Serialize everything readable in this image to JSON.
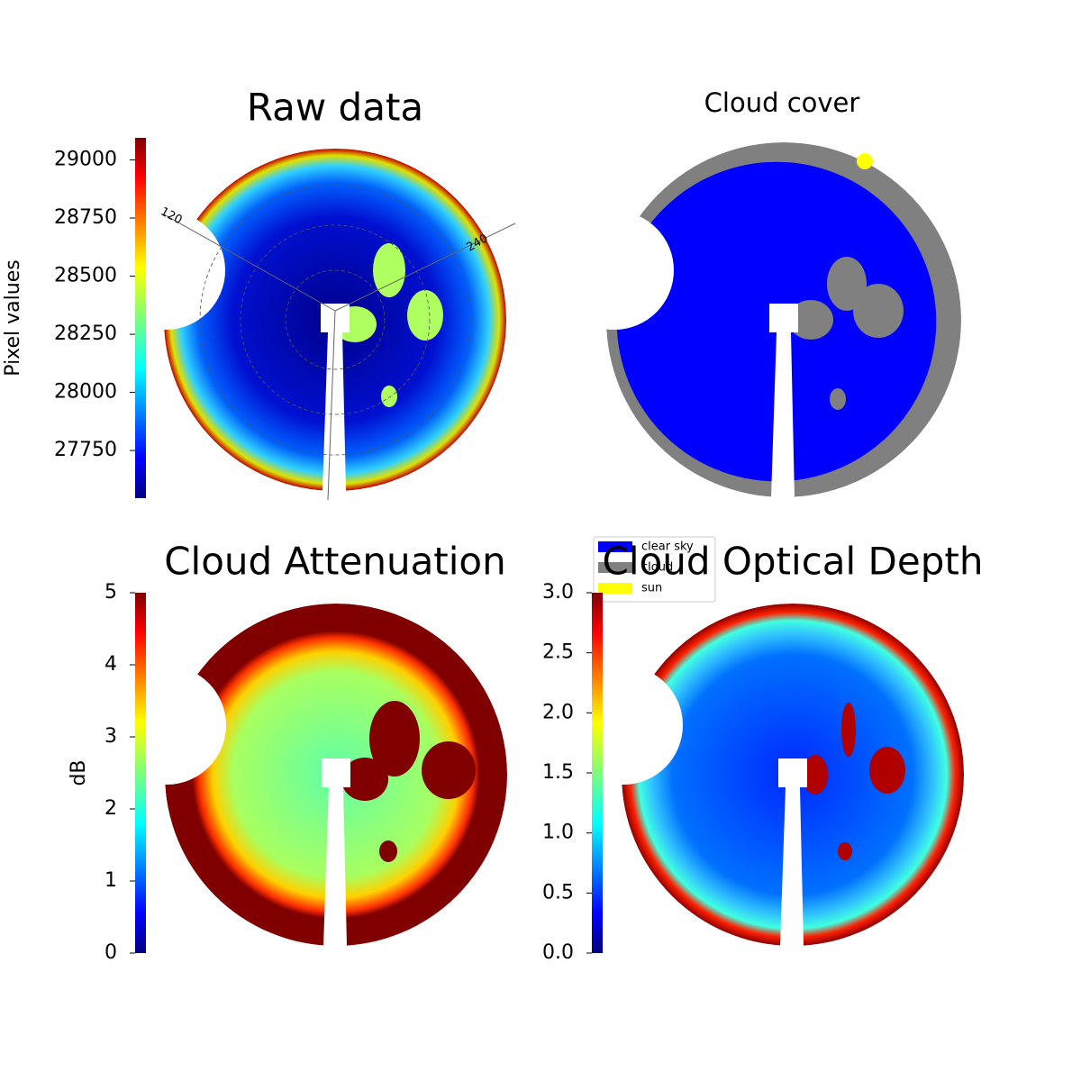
{
  "chart_data": [
    {
      "type": "image",
      "title": "Raw data",
      "colormap": "jet",
      "ylabel": "Pixel values",
      "ylim": [
        27545,
        29095
      ],
      "yticks": [
        27750,
        28000,
        28250,
        28500,
        28750,
        29000
      ],
      "polar_labels": [
        "120",
        "240"
      ]
    },
    {
      "type": "image",
      "title": "Cloud cover",
      "legend": "lower left",
      "series": [
        {
          "name": "clear sky",
          "color": "#0000ff"
        },
        {
          "name": "cloud",
          "color": "#808080"
        },
        {
          "name": "sun",
          "color": "#ffff00"
        }
      ]
    },
    {
      "type": "image",
      "title": "Cloud Attenuation",
      "colormap": "jet",
      "ylabel": "dB",
      "ylim": [
        0,
        5
      ],
      "yticks": [
        0,
        1,
        2,
        3,
        4,
        5
      ]
    },
    {
      "type": "image",
      "title": "Cloud Optical Depth",
      "colormap": "jet",
      "ylim": [
        0,
        3
      ],
      "yticks": [
        {
          "value": 0,
          "label": "0.0"
        },
        {
          "value": 0.5,
          "label": "0.5"
        },
        {
          "value": 1,
          "label": "1.0"
        },
        {
          "value": 1.5,
          "label": "1.5"
        },
        {
          "value": 2,
          "label": "2.0"
        },
        {
          "value": 2.5,
          "label": "2.5"
        },
        {
          "value": 3,
          "label": "3.0"
        }
      ]
    }
  ]
}
